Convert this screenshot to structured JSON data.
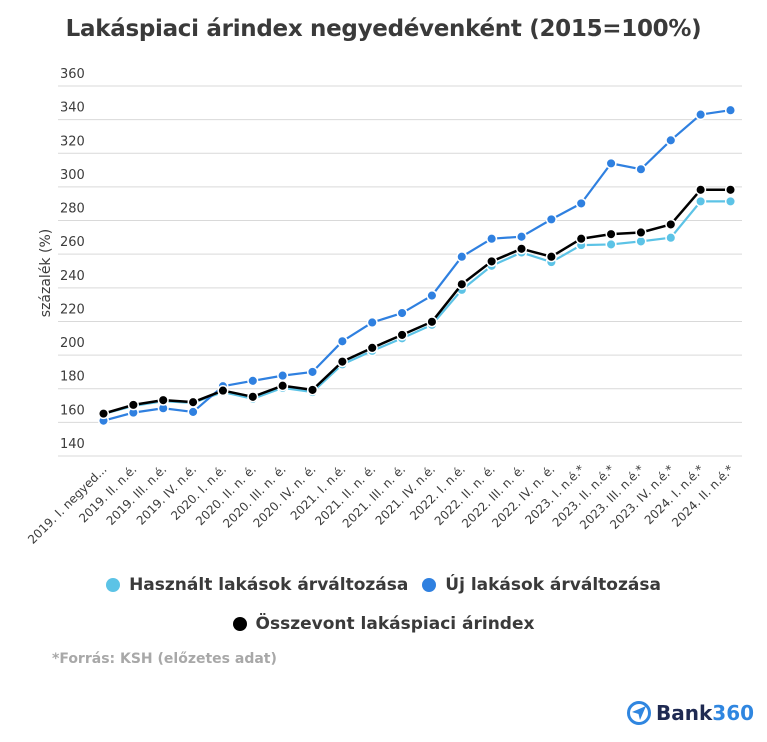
{
  "chart_data": {
    "type": "line",
    "title": "Lakáspiaci árindex negyedévenként (2015=100%)",
    "xlabel": "",
    "ylabel": "százalék (%)",
    "ylim": [
      140,
      360
    ],
    "yticks": [
      140,
      160,
      180,
      200,
      220,
      240,
      260,
      280,
      300,
      320,
      340,
      360
    ],
    "grid": true,
    "legend_position": "bottom",
    "categories": [
      "2019. I. negyed...",
      "2019. II. n.é.",
      "2019. III. n.é.",
      "2019. IV. n.é.",
      "2020. I. n.é.",
      "2020. II. n. é.",
      "2020. III. n. é.",
      "2020. IV. n. é.",
      "2021. I. n.é.",
      "2021. II. n. é.",
      "2021. III. n. é.",
      "2021. IV. n.é.",
      "2022. I. n.é.",
      "2022. II. n. é.",
      "2022. III. n. é.",
      "2022. IV. n. é.",
      "2023. I. n.é.*",
      "2023. II. n.é.*",
      "2023. III. n.é.*",
      "2023. IV. n.é.*",
      "2024. I. n.é.*",
      "2024. II. n.é.*"
    ],
    "series": [
      {
        "name": "Használt lakások árváltozása",
        "color": "#5cc3e6",
        "values": [
          165.0,
          169.8,
          172.6,
          171.6,
          178.0,
          174.0,
          180.5,
          178.0,
          194.5,
          202.5,
          210.0,
          218.0,
          238.8,
          253.1,
          261.0,
          255.3,
          265.4,
          265.8,
          267.6,
          269.8,
          291.4,
          291.4
        ]
      },
      {
        "name": "Új lakások árváltozása",
        "color": "#2f80e0",
        "values": [
          161.0,
          165.8,
          168.4,
          166.2,
          181.5,
          184.7,
          187.8,
          190.0,
          208.2,
          219.4,
          225.0,
          235.4,
          258.5,
          269.2,
          270.4,
          280.7,
          290.2,
          314.0,
          310.5,
          327.7,
          343.0,
          345.6
        ]
      },
      {
        "name": "Összevont lakáspiaci árindex",
        "color": "#000000",
        "values": [
          165.2,
          170.4,
          173.2,
          172.0,
          178.9,
          175.2,
          181.8,
          179.3,
          196.1,
          204.3,
          212.0,
          219.8,
          242.1,
          255.7,
          263.2,
          258.5,
          269.2,
          271.9,
          272.9,
          277.7,
          298.3,
          298.3
        ]
      }
    ]
  },
  "legend": {
    "row1": [
      0,
      1
    ],
    "row2": [
      2
    ]
  },
  "footer": {
    "source": "*Forrás: KSH (előzetes adat)",
    "logo_bank": "Bank",
    "logo_num": "360"
  },
  "colors": {
    "grid": "#d9d9d9",
    "logo_navy": "#1f2a52",
    "logo_blue": "#2f86e0"
  }
}
